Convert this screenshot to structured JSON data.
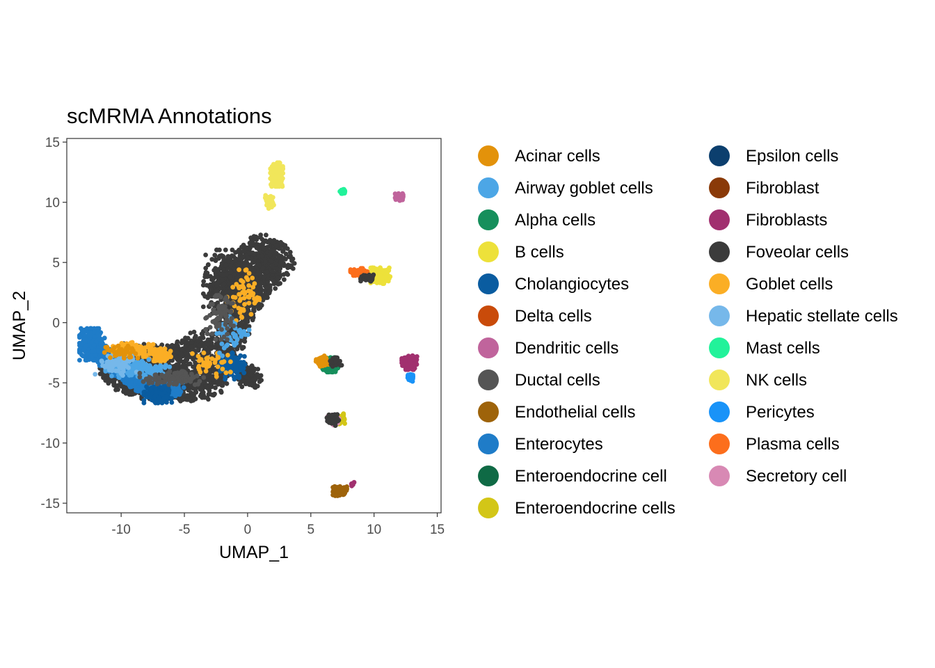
{
  "chart_data": {
    "type": "scatter",
    "title": "scMRMA Annotations",
    "xlabel": "UMAP_1",
    "ylabel": "UMAP_2",
    "xlim": [
      -14.3,
      15.3
    ],
    "ylim": [
      -15.8,
      15.3
    ],
    "x_ticks": [
      -10,
      -5,
      0,
      5,
      10,
      15
    ],
    "y_ticks": [
      -15,
      -10,
      -5,
      0,
      5,
      10,
      15
    ],
    "grid": false,
    "legend_position": "right",
    "legend_columns": 2,
    "series": [
      {
        "name": "Acinar cells",
        "color": "#E3920A"
      },
      {
        "name": "Airway goblet cells",
        "color": "#4CA6E6"
      },
      {
        "name": "Alpha cells",
        "color": "#168F5C"
      },
      {
        "name": "B cells",
        "color": "#EDE13A"
      },
      {
        "name": "Cholangiocytes",
        "color": "#0A5CA0"
      },
      {
        "name": "Delta cells",
        "color": "#C94B0A"
      },
      {
        "name": "Dendritic cells",
        "color": "#C0649C"
      },
      {
        "name": "Ductal cells",
        "color": "#555555"
      },
      {
        "name": "Endothelial cells",
        "color": "#9E630A"
      },
      {
        "name": "Enterocytes",
        "color": "#1F7CC8"
      },
      {
        "name": "Enteroendocrine cell",
        "color": "#0F6A45"
      },
      {
        "name": "Enteroendocrine cells",
        "color": "#D3C617"
      },
      {
        "name": "Epsilon cells",
        "color": "#0C3F6E"
      },
      {
        "name": "Fibroblast",
        "color": "#8A3A08"
      },
      {
        "name": "Fibroblasts",
        "color": "#A1306F"
      },
      {
        "name": "Foveolar cells",
        "color": "#3B3B3B"
      },
      {
        "name": "Goblet cells",
        "color": "#FBAE25"
      },
      {
        "name": "Hepatic stellate cells",
        "color": "#76B8EA"
      },
      {
        "name": "Mast cells",
        "color": "#22F29A"
      },
      {
        "name": "NK cells",
        "color": "#F1E65A"
      },
      {
        "name": "Pericytes",
        "color": "#1993F8"
      },
      {
        "name": "Plasma cells",
        "color": "#FC6E1C"
      },
      {
        "name": "Secretory cell",
        "color": "#D889B4"
      }
    ],
    "clusters": [
      {
        "series": "Foveolar cells",
        "path": [
          [
            -0.6,
            4.3
          ],
          [
            1.2,
            6.2
          ],
          [
            2.5,
            5.2
          ],
          [
            1.0,
            3.5
          ],
          [
            -0.5,
            1.5
          ],
          [
            -1.5,
            -1.5
          ],
          [
            -2.5,
            -3.5
          ],
          [
            -3.0,
            -5.0
          ],
          [
            -5.0,
            -5.2
          ],
          [
            -8.0,
            -5.0
          ],
          [
            -10.5,
            -4.2
          ],
          [
            -9.5,
            -3.0
          ],
          [
            -6.0,
            -3.3
          ],
          [
            -3.5,
            -1.8
          ]
        ],
        "width": 1.4,
        "n": 2200
      },
      {
        "series": "Foveolar cells",
        "center": [
          -1.3,
          3.4
        ],
        "spread": [
          2.0,
          2.4
        ],
        "n": 500
      },
      {
        "series": "Foveolar cells",
        "center": [
          0.1,
          -4.4
        ],
        "spread": [
          0.9,
          0.9
        ],
        "n": 140
      },
      {
        "series": "Enterocytes",
        "path": [
          [
            -12.4,
            -1.7
          ],
          [
            -11.2,
            -3.0
          ],
          [
            -9.0,
            -4.6
          ],
          [
            -7.0,
            -5.9
          ],
          [
            -5.5,
            -5.2
          ]
        ],
        "width": 0.8,
        "n": 900
      },
      {
        "series": "Enterocytes",
        "center": [
          -12.3,
          -1.8
        ],
        "spread": [
          0.9,
          1.2
        ],
        "n": 350
      },
      {
        "series": "Cholangiocytes",
        "center": [
          -7.1,
          -5.9
        ],
        "spread": [
          1.0,
          0.7
        ],
        "n": 160
      },
      {
        "series": "Cholangiocytes",
        "center": [
          -1.2,
          -3.6
        ],
        "spread": [
          0.9,
          1.0
        ],
        "n": 120
      },
      {
        "series": "Goblet cells",
        "center": [
          -9.0,
          -2.3
        ],
        "spread": [
          1.5,
          0.6
        ],
        "n": 160
      },
      {
        "series": "Goblet cells",
        "center": [
          -6.9,
          -2.7
        ],
        "spread": [
          0.8,
          0.5
        ],
        "n": 90
      },
      {
        "series": "Goblet cells",
        "center": [
          -0.3,
          2.2
        ],
        "spread": [
          1.2,
          2.0
        ],
        "n": 60
      },
      {
        "series": "Goblet cells",
        "center": [
          -3.0,
          -3.5
        ],
        "spread": [
          1.5,
          0.9
        ],
        "n": 40
      },
      {
        "series": "Airway goblet cells",
        "center": [
          -8.7,
          -3.8
        ],
        "spread": [
          2.3,
          0.7
        ],
        "n": 130
      },
      {
        "series": "Airway goblet cells",
        "center": [
          -1.2,
          -1.0
        ],
        "spread": [
          1.2,
          1.6
        ],
        "n": 50
      },
      {
        "series": "Hepatic stellate cells",
        "center": [
          -10.3,
          -3.4
        ],
        "spread": [
          1.6,
          0.9
        ],
        "n": 70
      },
      {
        "series": "Acinar cells",
        "center": [
          -10.0,
          -2.4
        ],
        "spread": [
          1.2,
          0.5
        ],
        "n": 45
      },
      {
        "series": "Ductal cells",
        "center": [
          -6.0,
          -4.6
        ],
        "spread": [
          2.3,
          0.5
        ],
        "n": 110
      },
      {
        "series": "Ductal cells",
        "center": [
          -2.0,
          0.8
        ],
        "spread": [
          1.2,
          2.0
        ],
        "n": 70
      },
      {
        "series": "NK cells",
        "center": [
          2.3,
          12.3
        ],
        "spread": [
          0.45,
          0.9
        ],
        "n": 220
      },
      {
        "series": "NK cells",
        "center": [
          1.7,
          10.0
        ],
        "spread": [
          0.35,
          0.6
        ],
        "n": 40
      },
      {
        "series": "Mast cells",
        "center": [
          7.5,
          10.9
        ],
        "spread": [
          0.18,
          0.16
        ],
        "n": 50
      },
      {
        "series": "Dendritic cells",
        "center": [
          12.0,
          10.4
        ],
        "spread": [
          0.3,
          0.3
        ],
        "n": 70
      },
      {
        "series": "B cells",
        "center": [
          10.5,
          3.9
        ],
        "spread": [
          0.7,
          0.6
        ],
        "n": 260
      },
      {
        "series": "Plasma cells",
        "center": [
          8.8,
          4.2
        ],
        "spread": [
          0.6,
          0.3
        ],
        "n": 70
      },
      {
        "series": "Foveolar cells",
        "center": [
          9.4,
          3.7
        ],
        "spread": [
          0.5,
          0.3
        ],
        "n": 40
      },
      {
        "series": "Alpha cells",
        "center": [
          6.5,
          -3.5
        ],
        "spread": [
          0.6,
          0.55
        ],
        "n": 180
      },
      {
        "series": "Acinar cells",
        "center": [
          5.9,
          -3.2
        ],
        "spread": [
          0.45,
          0.4
        ],
        "n": 80
      },
      {
        "series": "Foveolar cells",
        "center": [
          6.9,
          -3.2
        ],
        "spread": [
          0.5,
          0.4
        ],
        "n": 40
      },
      {
        "series": "Fibroblasts",
        "center": [
          12.8,
          -3.3
        ],
        "spread": [
          0.55,
          0.55
        ],
        "n": 220
      },
      {
        "series": "Pericytes",
        "center": [
          12.9,
          -4.6
        ],
        "spread": [
          0.25,
          0.3
        ],
        "n": 40
      },
      {
        "series": "Dendritic cells",
        "center": [
          6.7,
          -8.0
        ],
        "spread": [
          0.35,
          0.35
        ],
        "n": 60
      },
      {
        "series": "Enteroendocrine cells",
        "center": [
          7.3,
          -8.0
        ],
        "spread": [
          0.4,
          0.4
        ],
        "n": 70
      },
      {
        "series": "Secretory cell",
        "center": [
          6.9,
          -8.2
        ],
        "spread": [
          0.3,
          0.3
        ],
        "n": 40
      },
      {
        "series": "Foveolar cells",
        "center": [
          6.8,
          -8.0
        ],
        "spread": [
          0.5,
          0.5
        ],
        "n": 60
      },
      {
        "series": "Endothelial cells",
        "center": [
          7.3,
          -14.0
        ],
        "spread": [
          0.5,
          0.35
        ],
        "n": 180
      },
      {
        "series": "Fibroblasts",
        "center": [
          8.3,
          -13.4
        ],
        "spread": [
          0.15,
          0.15
        ],
        "n": 8
      }
    ]
  }
}
